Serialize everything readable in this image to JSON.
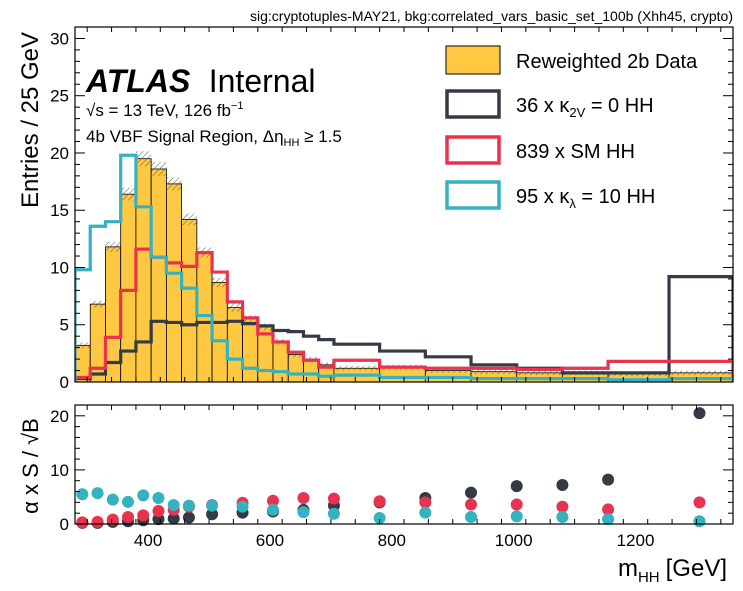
{
  "chart_data": [
    {
      "type": "line",
      "title": "sig:cryptotuples-MAY21, bkg:correlated_vars_basic_set_100b (Xhh45, crypto)",
      "xlabel": "m",
      "xlabel_sub": "HH",
      "xlabel_unit": "[GeV]",
      "ylabel": "Entries / 25 GeV",
      "xlim": [
        280,
        1360
      ],
      "ylim": [
        0,
        31
      ],
      "x_ticks": [
        "400",
        "600",
        "800",
        "1000",
        "1200"
      ],
      "y_ticks": [
        "0",
        "5",
        "10",
        "15",
        "20",
        "25",
        "30"
      ],
      "annotations": {
        "atlas": "ATLAS",
        "atlas_status": "Internal",
        "energy": "√s = 13 TeV, 126 fb",
        "energy_sup": "−1",
        "region": "4b VBF Signal  Region, Δη",
        "region_sub": "HH",
        "region_cut": " ≥ 1.5"
      },
      "legend_position": "top-right",
      "bin_edges": [
        280,
        305,
        330,
        355,
        380,
        405,
        430,
        455,
        480,
        505,
        530,
        555,
        580,
        605,
        630,
        655,
        680,
        705,
        780,
        855,
        930,
        1005,
        1080,
        1155,
        1255,
        1360
      ],
      "series": [
        {
          "name": "Reweighted 2b Data",
          "kind": "filled",
          "color": "#fec843",
          "values": [
            3.2,
            6.8,
            11.8,
            16.4,
            19.5,
            18.6,
            17.3,
            14.2,
            11.3,
            8.7,
            6.5,
            5.5,
            4.8,
            3.5,
            2.4,
            2.0,
            1.5,
            1.2,
            1.3,
            1.0,
            0.9,
            0.8,
            0.8,
            0.7,
            0.8
          ],
          "uncertainty": [
            0.25,
            0.3,
            0.45,
            0.55,
            0.65,
            0.6,
            0.55,
            0.5,
            0.45,
            0.4,
            0.35,
            0.3,
            0.3,
            0.25,
            0.25,
            0.2,
            0.2,
            0.2,
            0.2,
            0.2,
            0.2,
            0.2,
            0.2,
            0.2,
            0.2
          ]
        },
        {
          "name_pre": "36 x κ",
          "name_sub": "2V",
          "name_post": " = 0 HH",
          "kind": "step",
          "color": "#343a46",
          "values": [
            0.3,
            0.7,
            1.7,
            2.7,
            3.5,
            5.3,
            5.2,
            5.0,
            5.2,
            5.2,
            5.3,
            5.1,
            4.9,
            4.5,
            4.4,
            4.0,
            3.7,
            3.3,
            2.7,
            2.2,
            1.5,
            1.2,
            0.8,
            0.8,
            9.2
          ]
        },
        {
          "name": "839 x SM HH",
          "kind": "step",
          "color": "#e8334f",
          "values": [
            0.4,
            1.2,
            3.9,
            8.0,
            11.6,
            10.9,
            10.4,
            10.1,
            11.3,
            9.6,
            7.0,
            5.6,
            4.2,
            3.5,
            2.6,
            1.9,
            1.3,
            1.9,
            1.3,
            1.2,
            1.2,
            1.1,
            1.2,
            1.8,
            1.8
          ]
        },
        {
          "name_pre": "95 x κ",
          "name_sub": "λ",
          "name_post": " = 10 HH",
          "kind": "step",
          "color": "#35b2bf",
          "values": [
            9.8,
            13.6,
            14.0,
            19.8,
            15.3,
            10.9,
            9.5,
            8.2,
            5.8,
            3.6,
            2.0,
            1.2,
            1.0,
            0.9,
            0.7,
            0.7,
            0.5,
            0.6,
            0.4,
            0.4,
            0.3,
            0.3,
            0.3,
            0.2,
            0.3
          ]
        }
      ]
    },
    {
      "type": "scatter",
      "xlabel": "m",
      "xlabel_sub": "HH",
      "xlabel_unit": "[GeV]",
      "ylabel": "α x S / √B",
      "xlim": [
        280,
        1360
      ],
      "ylim": [
        0,
        22
      ],
      "y_ticks": [
        "0",
        "10",
        "20"
      ],
      "series": [
        {
          "name": "36 x κ2V = 0 HH",
          "color": "#343a46",
          "points": [
            [
              292,
              0.2
            ],
            [
              317,
              0.2
            ],
            [
              342,
              0.4
            ],
            [
              367,
              0.5
            ],
            [
              392,
              0.7
            ],
            [
              417,
              0.9
            ],
            [
              442,
              1.0
            ],
            [
              467,
              1.2
            ],
            [
              505,
              1.8
            ],
            [
              555,
              2.1
            ],
            [
              605,
              2.3
            ],
            [
              655,
              2.6
            ],
            [
              705,
              3.4
            ],
            [
              780,
              4.0
            ],
            [
              855,
              4.8
            ],
            [
              930,
              5.8
            ],
            [
              1005,
              7.0
            ],
            [
              1080,
              7.2
            ],
            [
              1155,
              8.2
            ],
            [
              1305,
              20.5
            ]
          ]
        },
        {
          "name": "839 x SM HH",
          "color": "#e8334f",
          "points": [
            [
              292,
              0.3
            ],
            [
              317,
              0.4
            ],
            [
              342,
              0.8
            ],
            [
              367,
              1.3
            ],
            [
              392,
              1.6
            ],
            [
              417,
              2.4
            ],
            [
              442,
              2.6
            ],
            [
              467,
              3.2
            ],
            [
              505,
              3.5
            ],
            [
              555,
              3.9
            ],
            [
              605,
              4.3
            ],
            [
              655,
              4.8
            ],
            [
              705,
              4.7
            ],
            [
              780,
              4.2
            ],
            [
              855,
              4.0
            ],
            [
              930,
              3.6
            ],
            [
              1005,
              3.6
            ],
            [
              1080,
              3.2
            ],
            [
              1155,
              2.7
            ],
            [
              1305,
              4.0
            ]
          ]
        },
        {
          "name": "95 x κλ = 10 HH",
          "color": "#35b2bf",
          "points": [
            [
              292,
              5.5
            ],
            [
              317,
              5.7
            ],
            [
              342,
              4.5
            ],
            [
              367,
              4.1
            ],
            [
              392,
              5.3
            ],
            [
              417,
              4.8
            ],
            [
              442,
              3.5
            ],
            [
              467,
              3.4
            ],
            [
              505,
              3.4
            ],
            [
              555,
              3.2
            ],
            [
              605,
              2.6
            ],
            [
              655,
              2.2
            ],
            [
              705,
              1.9
            ],
            [
              780,
              1.1
            ],
            [
              855,
              2.1
            ],
            [
              930,
              1.3
            ],
            [
              1005,
              1.4
            ],
            [
              1080,
              1.3
            ],
            [
              1155,
              0.9
            ],
            [
              1305,
              0.5
            ]
          ]
        }
      ]
    }
  ]
}
